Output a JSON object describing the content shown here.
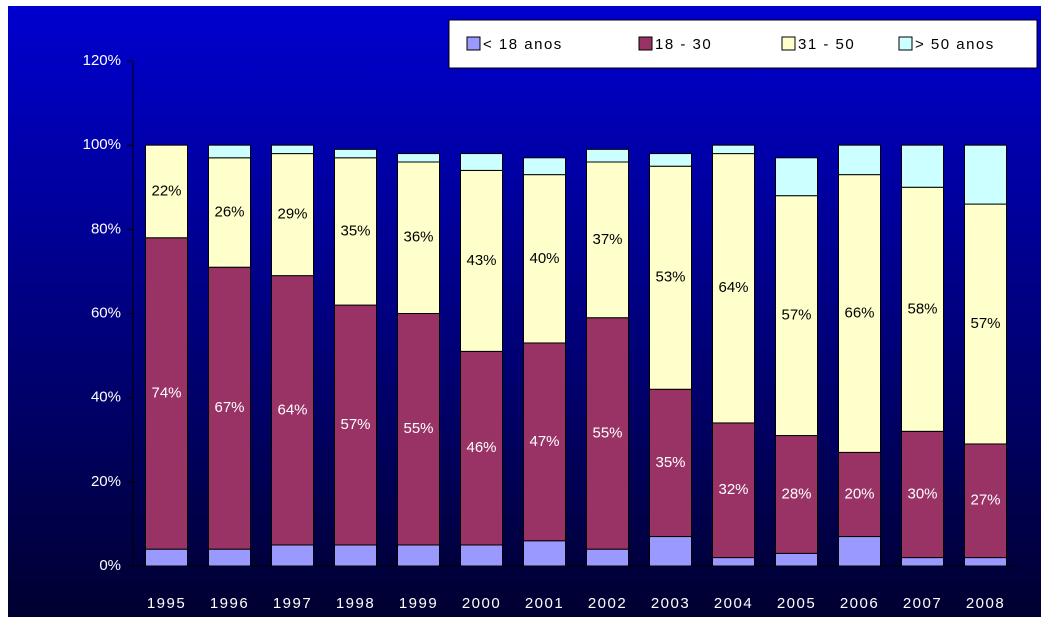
{
  "chart_data": {
    "type": "stacked_bar",
    "categories": [
      "1995",
      "1996",
      "1997",
      "1998",
      "1999",
      "2000",
      "2001",
      "2002",
      "2003",
      "2004",
      "2005",
      "2006",
      "2007",
      "2008"
    ],
    "series": [
      {
        "name": "< 18 anos",
        "color": "#9999ff",
        "values": [
          4,
          4,
          5,
          5,
          5,
          5,
          6,
          4,
          7,
          2,
          3,
          7,
          2,
          2
        ]
      },
      {
        "name": "18 - 30",
        "color": "#993366",
        "values": [
          74,
          67,
          64,
          57,
          55,
          46,
          47,
          55,
          35,
          32,
          28,
          20,
          30,
          27
        ],
        "value_labels": [
          "74%",
          "67%",
          "64%",
          "57%",
          "55%",
          "46%",
          "47%",
          "55%",
          "35%",
          "32%",
          "28%",
          "20%",
          "30%",
          "27%"
        ]
      },
      {
        "name": "31 - 50",
        "color": "#ffffcc",
        "values": [
          22,
          26,
          29,
          35,
          36,
          43,
          40,
          37,
          53,
          64,
          57,
          66,
          58,
          57
        ],
        "value_labels": [
          "22%",
          "26%",
          "29%",
          "35%",
          "36%",
          "43%",
          "40%",
          "37%",
          "53%",
          "64%",
          "57%",
          "66%",
          "58%",
          "57%"
        ]
      },
      {
        "name": "> 50 anos",
        "color": "#ccffff",
        "values": [
          0,
          3,
          2,
          2,
          2,
          4,
          4,
          3,
          3,
          2,
          9,
          7,
          10,
          14
        ]
      }
    ],
    "ylim": [
      0,
      120
    ],
    "yticks": [
      {
        "value": 0,
        "label": "0%"
      },
      {
        "value": 20,
        "label": "20%"
      },
      {
        "value": 40,
        "label": "40%"
      },
      {
        "value": 60,
        "label": "60%"
      },
      {
        "value": 80,
        "label": "80%"
      },
      {
        "value": 100,
        "label": "100%"
      },
      {
        "value": 120,
        "label": "120%"
      }
    ],
    "legend": "top-right"
  }
}
